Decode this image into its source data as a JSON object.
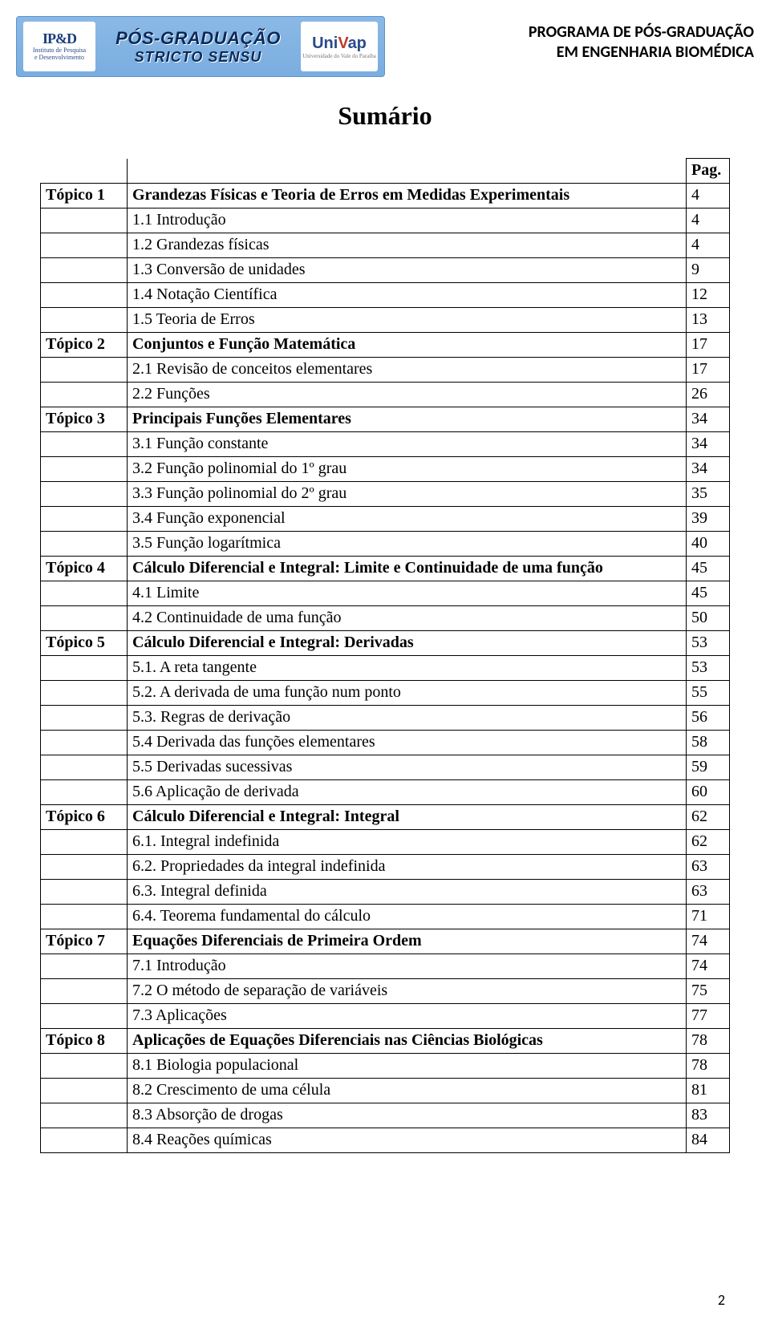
{
  "header": {
    "logo_ipd_top": "IP&D",
    "logo_ipd_line1": "Instituto de Pesquisa",
    "logo_ipd_line2": "e Desenvolvimento",
    "pos_line1": "PÓS-GRADUAÇÃO",
    "pos_line2": "STRICTO SENSU",
    "univap_main": "UniVap",
    "univap_sub": "Universidade do Vale do Paraíba",
    "right_line1": "PROGRAMA DE PÓS-GRADUAÇÃO",
    "right_line2": "EM ENGENHARIA BIOMÉDICA"
  },
  "title": "Sumário",
  "page_header_label": "Pag.",
  "page_number": "2",
  "toc": [
    {
      "topic": "Tópico 1",
      "desc": "Grandezas Físicas e Teoria de Erros em Medidas Experimentais",
      "page": "4",
      "bold": true
    },
    {
      "topic": "",
      "desc": "1.1 Introdução",
      "page": "4",
      "bold": false
    },
    {
      "topic": "",
      "desc": "1.2 Grandezas físicas",
      "page": "4",
      "bold": false
    },
    {
      "topic": "",
      "desc": "1.3 Conversão de unidades",
      "page": "9",
      "bold": false
    },
    {
      "topic": "",
      "desc": "1.4 Notação Científica",
      "page": "12",
      "bold": false
    },
    {
      "topic": "",
      "desc": "1.5 Teoria de Erros",
      "page": "13",
      "bold": false
    },
    {
      "topic": "Tópico 2",
      "desc": "Conjuntos e Função Matemática",
      "page": "17",
      "bold": true
    },
    {
      "topic": "",
      "desc": "2.1 Revisão de conceitos elementares",
      "page": "17",
      "bold": false
    },
    {
      "topic": "",
      "desc": "2.2 Funções",
      "page": "26",
      "bold": false
    },
    {
      "topic": "Tópico 3",
      "desc": "Principais Funções Elementares",
      "page": "34",
      "bold": true
    },
    {
      "topic": "",
      "desc": "3.1 Função constante",
      "page": "34",
      "bold": false
    },
    {
      "topic": "",
      "desc": "3.2 Função polinomial do 1º grau",
      "page": "34",
      "bold": false
    },
    {
      "topic": "",
      "desc": "3.3 Função polinomial do 2º grau",
      "page": "35",
      "bold": false
    },
    {
      "topic": "",
      "desc": "3.4 Função exponencial",
      "page": "39",
      "bold": false
    },
    {
      "topic": "",
      "desc": "3.5 Função logarítmica",
      "page": "40",
      "bold": false
    },
    {
      "topic": "Tópico 4",
      "desc": "Cálculo Diferencial e Integral: Limite e Continuidade de uma função",
      "page": "45",
      "bold": true
    },
    {
      "topic": "",
      "desc": "4.1 Limite",
      "page": "45",
      "bold": false
    },
    {
      "topic": "",
      "desc": "4.2 Continuidade de uma função",
      "page": "50",
      "bold": false
    },
    {
      "topic": "Tópico 5",
      "desc": "Cálculo Diferencial e Integral: Derivadas",
      "page": "53",
      "bold": true
    },
    {
      "topic": "",
      "desc": "5.1. A reta tangente",
      "page": "53",
      "bold": false
    },
    {
      "topic": "",
      "desc": "5.2. A derivada de uma função num ponto",
      "page": "55",
      "bold": false
    },
    {
      "topic": "",
      "desc": "5.3. Regras de derivação",
      "page": "56",
      "bold": false
    },
    {
      "topic": "",
      "desc": "5.4 Derivada das funções elementares",
      "page": "58",
      "bold": false
    },
    {
      "topic": "",
      "desc": "5.5 Derivadas sucessivas",
      "page": "59",
      "bold": false
    },
    {
      "topic": "",
      "desc": "5.6 Aplicação de derivada",
      "page": "60",
      "bold": false
    },
    {
      "topic": "Tópico 6",
      "desc": "Cálculo Diferencial e Integral: Integral",
      "page": "62",
      "bold": true
    },
    {
      "topic": "",
      "desc": "6.1. Integral indefinida",
      "page": "62",
      "bold": false
    },
    {
      "topic": "",
      "desc": "6.2. Propriedades da integral indefinida",
      "page": "63",
      "bold": false
    },
    {
      "topic": "",
      "desc": "6.3. Integral definida",
      "page": "63",
      "bold": false
    },
    {
      "topic": "",
      "desc": "6.4. Teorema fundamental do cálculo",
      "page": "71",
      "bold": false
    },
    {
      "topic": "Tópico 7",
      "desc": "Equações Diferenciais de Primeira Ordem",
      "page": "74",
      "bold": true
    },
    {
      "topic": "",
      "desc": "7.1 Introdução",
      "page": "74",
      "bold": false
    },
    {
      "topic": "",
      "desc": "7.2 O método de separação de variáveis",
      "page": "75",
      "bold": false
    },
    {
      "topic": "",
      "desc": "7.3 Aplicações",
      "page": "77",
      "bold": false
    },
    {
      "topic": "Tópico 8",
      "desc": "Aplicações de Equações Diferenciais nas Ciências Biológicas",
      "page": "78",
      "bold": true
    },
    {
      "topic": "",
      "desc": "8.1 Biologia populacional",
      "page": "78",
      "bold": false
    },
    {
      "topic": "",
      "desc": "8.2 Crescimento de uma célula",
      "page": "81",
      "bold": false
    },
    {
      "topic": "",
      "desc": "8.3 Absorção de drogas",
      "page": "83",
      "bold": false
    },
    {
      "topic": "",
      "desc": "8.4 Reações químicas",
      "page": "84",
      "bold": false
    }
  ]
}
